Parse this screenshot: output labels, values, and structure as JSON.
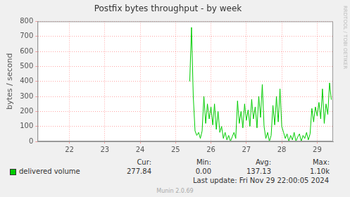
{
  "chart_data": {
    "type": "line",
    "title": "Postfix bytes throughput - by week",
    "y_label": "bytes / second",
    "x": [
      25.9,
      25.95,
      26,
      26.05,
      26.1,
      26.15,
      26.2,
      26.25,
      26.3,
      26.35,
      26.4,
      26.45,
      26.5,
      26.55,
      26.6,
      26.65,
      26.7,
      26.75,
      26.8,
      26.85,
      26.9,
      26.95,
      27,
      27.05,
      27.1,
      27.15,
      27.2,
      27.25,
      27.3,
      27.35,
      27.4,
      27.45,
      27.5,
      27.55,
      27.6,
      27.65,
      27.7,
      27.75,
      27.8,
      27.85,
      27.9,
      27.95,
      28,
      28.05,
      28.1,
      28.15,
      28.2,
      28.25,
      28.3,
      28.35,
      28.4,
      28.45,
      28.5,
      28.55,
      28.6,
      28.65,
      28.7,
      28.75,
      28.8,
      28.85,
      28.9,
      28.95,
      29,
      29.05,
      29.1,
      29.15,
      29.2,
      29.25,
      29.3,
      29.35,
      29.4,
      29.45,
      29.5,
      29.55,
      29.6,
      29.65,
      29.7,
      29.75,
      29.8,
      29.85,
      29.9
    ],
    "series": [
      {
        "name": "delivered volume",
        "color": "#00cc00",
        "values": [
          400,
          760,
          300,
          70,
          40,
          60,
          20,
          70,
          300,
          120,
          250,
          150,
          230,
          110,
          250,
          80,
          200,
          60,
          100,
          20,
          60,
          10,
          40,
          0,
          30,
          60,
          20,
          270,
          120,
          200,
          90,
          250,
          140,
          210,
          100,
          280,
          150,
          230,
          90,
          300,
          160,
          380,
          100,
          20,
          60,
          0,
          40,
          240,
          110,
          300,
          130,
          350,
          100,
          60,
          20,
          50,
          0,
          40,
          10,
          60,
          0,
          30,
          50,
          0,
          40,
          20,
          60,
          10,
          50,
          220,
          130,
          230,
          170,
          260,
          150,
          350,
          120,
          250,
          180,
          390,
          278
        ],
        "stats": [
          {
            "name": "Cur:",
            "value": 277.84,
            "label": "277.84"
          },
          {
            "name": "Min:",
            "value": 0,
            "label": "0.00"
          },
          {
            "name": "Avg:",
            "value": 137.13,
            "label": "137.13"
          },
          {
            "name": "Max:",
            "value": 1100,
            "label": "1.10k"
          }
        ]
      }
    ],
    "xlim": [
      21.6,
      29.95
    ],
    "xticks": [
      {
        "value": 22.5,
        "label": "22"
      },
      {
        "value": 23.5,
        "label": "23"
      },
      {
        "value": 24.5,
        "label": "24"
      },
      {
        "value": 25.5,
        "label": "25"
      },
      {
        "value": 26.5,
        "label": "26"
      },
      {
        "value": 27.5,
        "label": "27"
      },
      {
        "value": 28.5,
        "label": "28"
      },
      {
        "value": 29.5,
        "label": "29"
      }
    ],
    "ylim": [
      0,
      800
    ],
    "yticks": [
      0,
      100,
      200,
      300,
      400,
      500,
      600,
      700,
      800
    ],
    "grid": true,
    "legend": "bottom",
    "last_update": "Last update: Fri Nov 29 22:00:05 2024",
    "footer": "Munin 2.0.69",
    "watermark": "RRDTOOL / TOBI OETIKER"
  }
}
